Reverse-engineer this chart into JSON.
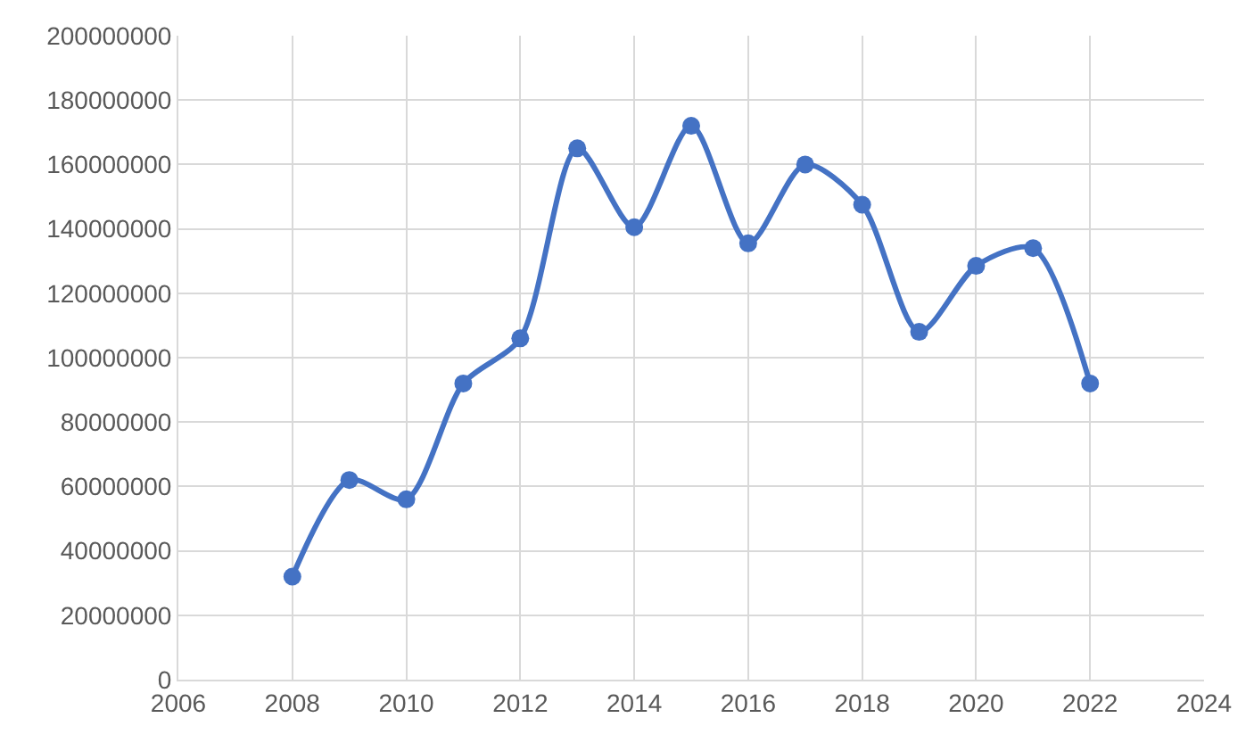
{
  "chart_data": {
    "type": "line",
    "x": [
      2008,
      2009,
      2010,
      2011,
      2012,
      2013,
      2014,
      2015,
      2016,
      2017,
      2018,
      2019,
      2020,
      2021,
      2022
    ],
    "series": [
      {
        "color": "#4472c4",
        "values": [
          32000000,
          62000000,
          56000000,
          92000000,
          106000000,
          165000000,
          140500000,
          172000000,
          135500000,
          160000000,
          147500000,
          108000000,
          128500000,
          134000000,
          92000000
        ]
      }
    ],
    "xlim": [
      2006,
      2024
    ],
    "xticks": [
      2006,
      2008,
      2010,
      2012,
      2014,
      2016,
      2018,
      2020,
      2022,
      2024
    ],
    "ylim": [
      0,
      200000000
    ],
    "yticks": [
      0,
      20000000,
      40000000,
      60000000,
      80000000,
      100000000,
      120000000,
      140000000,
      160000000,
      180000000,
      200000000
    ],
    "grid": true,
    "marker": "circle",
    "line_style": "solid",
    "legend": false
  }
}
